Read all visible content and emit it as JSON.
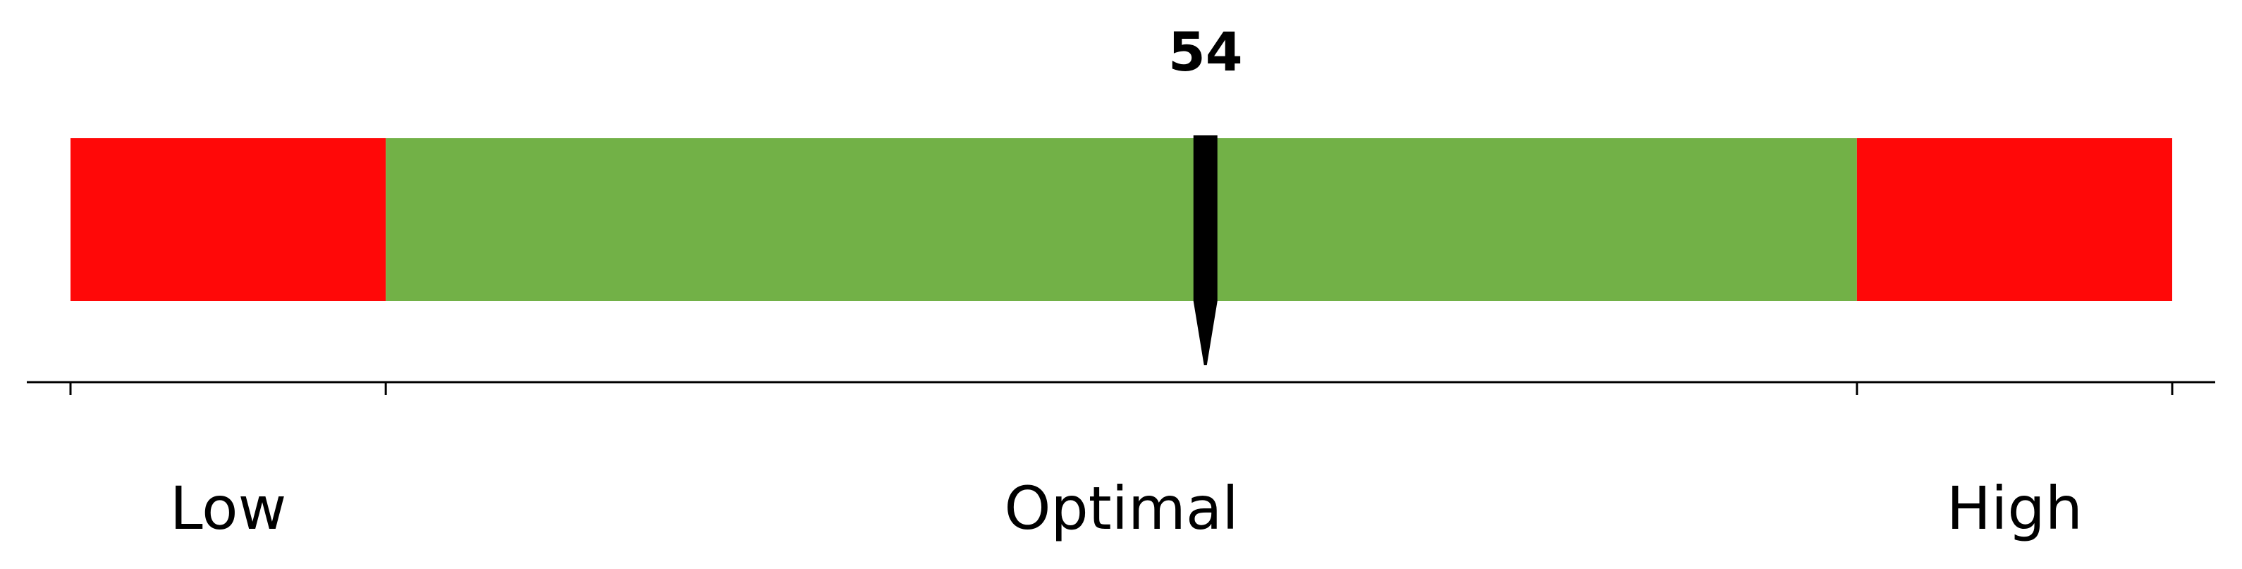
{
  "chart_data": {
    "type": "bullet-gauge",
    "value": 54,
    "value_label": "54",
    "range": [
      0,
      100
    ],
    "zones": [
      {
        "name": "Low",
        "from": 0,
        "to": 15,
        "color": "#ff0808"
      },
      {
        "name": "Optimal",
        "from": 15,
        "to": 85,
        "color": "#72b147"
      },
      {
        "name": "High",
        "from": 85,
        "to": 100,
        "color": "#ff0808"
      }
    ],
    "ticks": [
      0,
      15,
      85,
      100
    ],
    "zone_labels": [
      "Low",
      "Optimal",
      "High"
    ],
    "marker_color": "#000000"
  }
}
